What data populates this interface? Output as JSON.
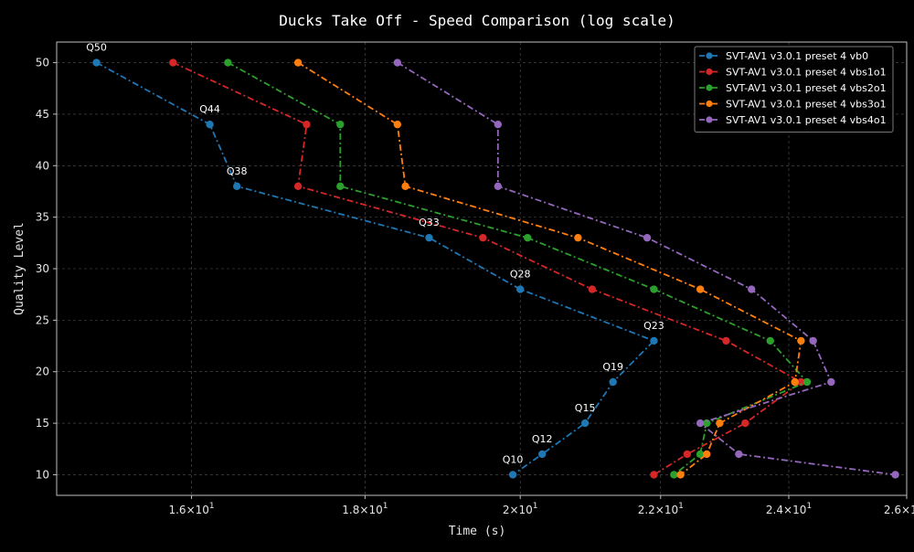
{
  "chart_data": {
    "type": "line",
    "title": "Ducks Take Off - Speed Comparison (log scale)",
    "xlabel": "Time (s)",
    "ylabel": "Quality Level",
    "xscale": "log",
    "xlim": [
      14.6,
      26.0
    ],
    "ylim": [
      8.0,
      52.0
    ],
    "xticks": [
      {
        "value": 16,
        "base": "1.6",
        "exp": "1"
      },
      {
        "value": 18,
        "base": "1.8",
        "exp": "1"
      },
      {
        "value": 20,
        "base": "2",
        "exp": "1"
      },
      {
        "value": 22,
        "base": "2.2",
        "exp": "1"
      },
      {
        "value": 24,
        "base": "2.4",
        "exp": "1"
      },
      {
        "value": 26,
        "base": "2.6",
        "exp": "1"
      }
    ],
    "x_tick_mantissa_suffix": "×10",
    "yticks": [
      "10",
      "15",
      "20",
      "25",
      "30",
      "35",
      "40",
      "45",
      "50"
    ],
    "grid": true,
    "legend_position": "top-right",
    "point_labels": [
      "Q50",
      "Q44",
      "Q38",
      "Q33",
      "Q28",
      "Q23",
      "Q19",
      "Q15",
      "Q12",
      "Q10"
    ],
    "series": [
      {
        "name": "SVT-AV1 v3.0.1 preset 4 vb0",
        "color": "#1f77b4",
        "points": [
          [
            15.0,
            50
          ],
          [
            16.2,
            44
          ],
          [
            16.5,
            38
          ],
          [
            18.8,
            33
          ],
          [
            20.0,
            28
          ],
          [
            21.9,
            23
          ],
          [
            21.3,
            19
          ],
          [
            20.9,
            15
          ],
          [
            20.3,
            12
          ],
          [
            19.9,
            10
          ]
        ]
      },
      {
        "name": "SVT-AV1 v3.0.1 preset 4 vbs1o1",
        "color": "#d62728",
        "points": [
          [
            15.8,
            50
          ],
          [
            17.3,
            44
          ],
          [
            17.2,
            38
          ],
          [
            19.5,
            33
          ],
          [
            21.0,
            28
          ],
          [
            23.0,
            23
          ],
          [
            24.2,
            19
          ],
          [
            23.3,
            15
          ],
          [
            22.4,
            12
          ],
          [
            21.9,
            10
          ]
        ]
      },
      {
        "name": "SVT-AV1 v3.0.1 preset 4 vbs2o1",
        "color": "#2ca02c",
        "points": [
          [
            16.4,
            50
          ],
          [
            17.7,
            44
          ],
          [
            17.7,
            38
          ],
          [
            20.1,
            33
          ],
          [
            21.9,
            28
          ],
          [
            23.7,
            23
          ],
          [
            24.3,
            19
          ],
          [
            22.7,
            15
          ],
          [
            22.6,
            12
          ],
          [
            22.2,
            10
          ]
        ]
      },
      {
        "name": "SVT-AV1 v3.0.1 preset 4 vbs3o1",
        "color": "#ff7f0e",
        "points": [
          [
            17.2,
            50
          ],
          [
            18.4,
            44
          ],
          [
            18.5,
            38
          ],
          [
            20.8,
            33
          ],
          [
            22.6,
            28
          ],
          [
            24.2,
            23
          ],
          [
            24.1,
            19
          ],
          [
            22.9,
            15
          ],
          [
            22.7,
            12
          ],
          [
            22.3,
            10
          ]
        ]
      },
      {
        "name": "SVT-AV1 v3.0.1 preset 4 vbs4o1",
        "color": "#9467bd",
        "points": [
          [
            18.4,
            50
          ],
          [
            19.7,
            44
          ],
          [
            19.7,
            38
          ],
          [
            21.8,
            33
          ],
          [
            23.4,
            28
          ],
          [
            24.4,
            23
          ],
          [
            24.7,
            19
          ],
          [
            22.6,
            15
          ],
          [
            23.2,
            12
          ],
          [
            25.8,
            10
          ]
        ]
      }
    ]
  }
}
